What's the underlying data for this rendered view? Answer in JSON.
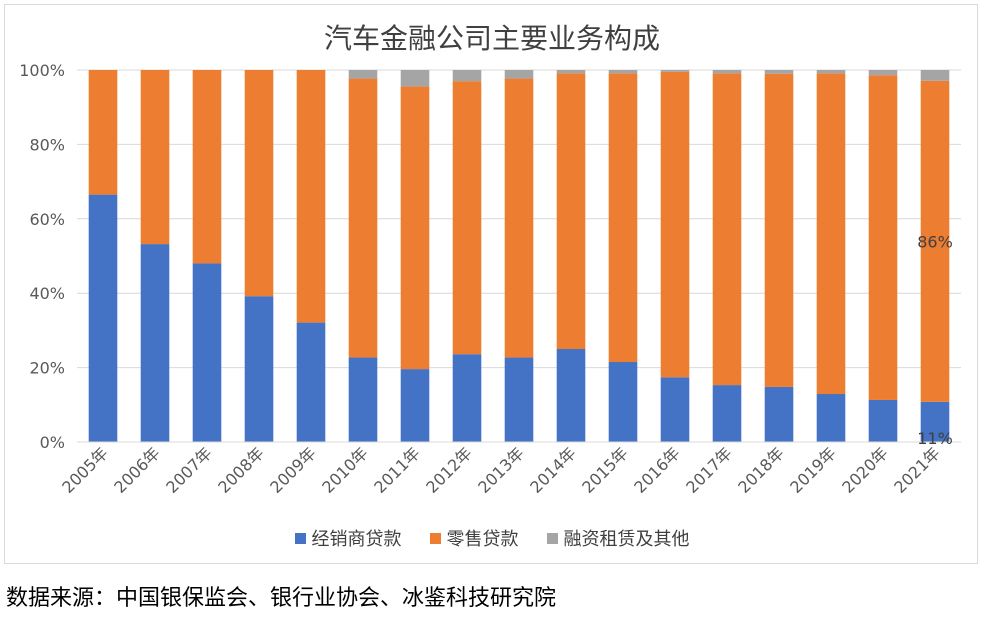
{
  "chart_data": {
    "type": "bar",
    "stacked": true,
    "title": "汽车金融公司主要业务构成",
    "categories": [
      "2005年",
      "2006年",
      "2007年",
      "2008年",
      "2009年",
      "2010年",
      "2011年",
      "2012年",
      "2013年",
      "2014年",
      "2015年",
      "2016年",
      "2017年",
      "2018年",
      "2019年",
      "2020年",
      "2021年"
    ],
    "series": [
      {
        "name": "经销商贷款",
        "color": "#4472C4",
        "values": [
          66.5,
          53.2,
          48.0,
          39.2,
          32.1,
          22.7,
          19.6,
          23.6,
          22.7,
          25.0,
          21.5,
          17.4,
          15.3,
          14.8,
          12.9,
          11.3,
          10.8
        ]
      },
      {
        "name": "零售贷款",
        "color": "#ED7D31",
        "values": [
          33.5,
          46.8,
          52.0,
          60.8,
          67.9,
          75.0,
          76.0,
          73.4,
          75.0,
          74.1,
          77.6,
          82.1,
          83.8,
          84.2,
          86.2,
          87.3,
          86.3
        ]
      },
      {
        "name": "融资租赁及其他",
        "color": "#A5A5A5",
        "values": [
          0,
          0,
          0,
          0,
          0,
          2.3,
          4.4,
          3.0,
          2.3,
          0.9,
          0.9,
          0.5,
          0.9,
          1.0,
          0.9,
          1.4,
          2.9
        ]
      }
    ],
    "ylim": [
      0,
      100
    ],
    "yticks": [
      "0%",
      "20%",
      "40%",
      "60%",
      "80%",
      "100%"
    ],
    "annotations": [
      {
        "category": "2021年",
        "series": "零售贷款",
        "text": "86%"
      },
      {
        "category": "2021年",
        "series": "经销商贷款",
        "text": "11%"
      }
    ],
    "legend_position": "bottom",
    "grid": true
  },
  "source_note": "数据来源：中国银保监会、银行业协会、冰鉴科技研究院"
}
